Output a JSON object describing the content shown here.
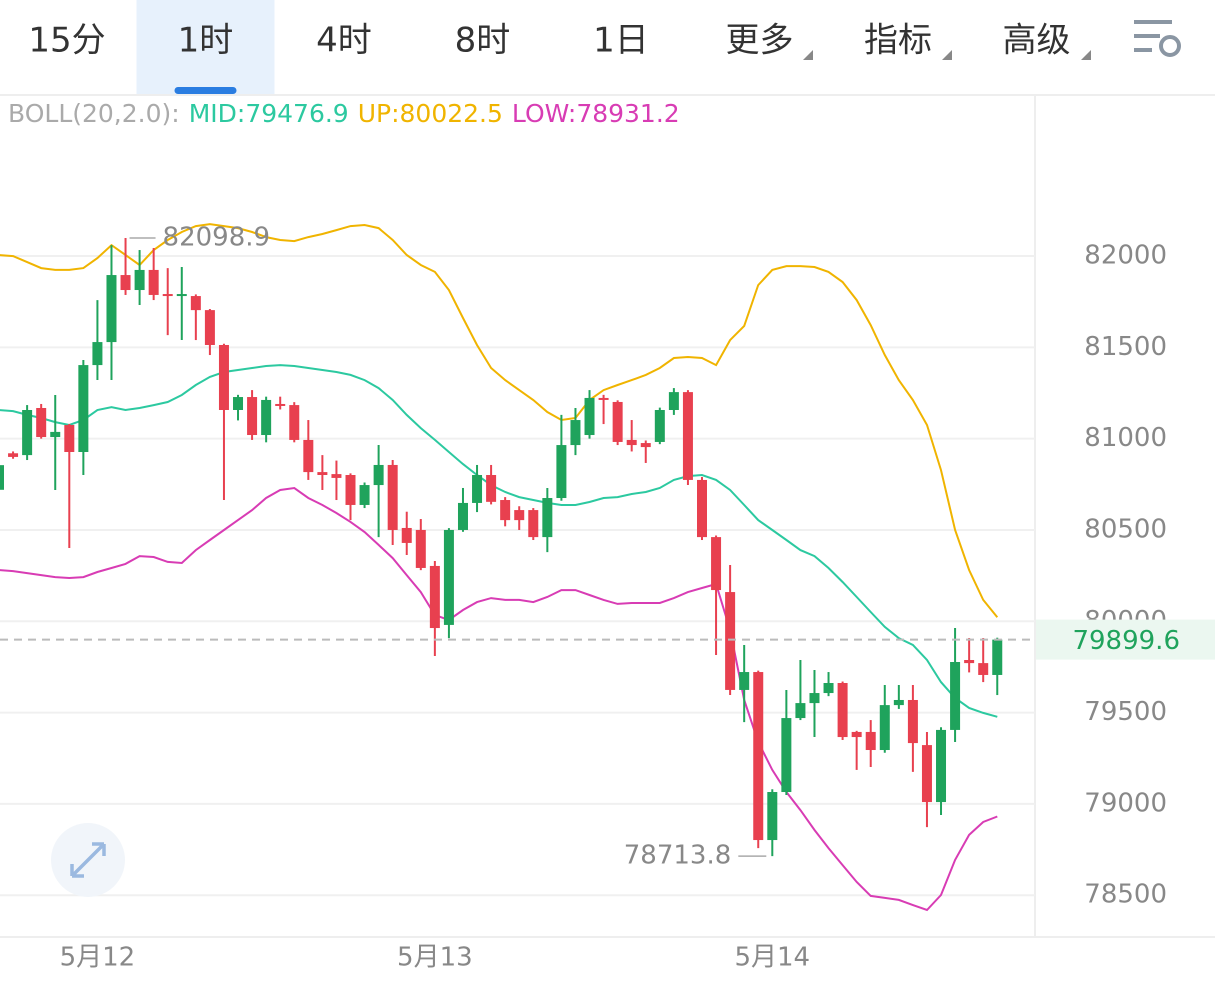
{
  "tabs": [
    "15分",
    "1时",
    "4时",
    "8时",
    "1日",
    "更多",
    "指标",
    "高级"
  ],
  "selected_tab": 1,
  "chart_data": {
    "type": "candlestick",
    "indicator": "BOLL(20,2.0):",
    "categories": [
      null,
      null,
      null,
      null,
      null,
      null,
      null,
      "5月12",
      null,
      null,
      null,
      null,
      null,
      null,
      null,
      null,
      null,
      null,
      null,
      null,
      null,
      null,
      null,
      null,
      null,
      null,
      null,
      null,
      null,
      null,
      null,
      "5月13",
      null,
      null,
      null,
      null,
      null,
      null,
      null,
      null,
      null,
      null,
      null,
      null,
      null,
      null,
      null,
      null,
      null,
      null,
      null,
      null,
      null,
      null,
      null,
      "5月14",
      null,
      null,
      null,
      null,
      null,
      null,
      null,
      null,
      null,
      null,
      null,
      null,
      null,
      null,
      null,
      null
    ],
    "open": [
      80720,
      80920,
      80910,
      81168,
      81009,
      81075,
      80927,
      81403,
      81529,
      81896,
      81814,
      81924,
      81792,
      81787,
      81781,
      81704,
      81513,
      81157,
      81228,
      81020,
      81190,
      81184,
      80993,
      80817,
      80806,
      80801,
      80637,
      80746,
      80856,
      80511,
      80500,
      80303,
      79980,
      80500,
      80648,
      80801,
      80664,
      80609,
      80609,
      80461,
      80675,
      80965,
      81020,
      81223,
      81201,
      80993,
      80976,
      80982,
      81157,
      81255,
      80774,
      80461,
      80160,
      79624,
      79722,
      78802,
      79065,
      79470,
      79552,
      79607,
      79662,
      79394,
      79394,
      79295,
      79541,
      79569,
      79322,
      79010,
      79405,
      79788,
      79771,
      79706
    ],
    "high": [
      80880,
      80930,
      81184,
      81190,
      81239,
      81080,
      81431,
      81759,
      82060,
      82098.9,
      82033,
      82044,
      81934,
      81940,
      81790,
      81710,
      81520,
      81240,
      81266,
      81230,
      81230,
      81200,
      81102,
      80910,
      80880,
      80810,
      80760,
      80965,
      80883,
      80600,
      80560,
      80330,
      80510,
      80730,
      80856,
      80856,
      80680,
      80630,
      80620,
      80730,
      81130,
      81168,
      81266,
      81240,
      81210,
      81102,
      80990,
      81170,
      81277,
      81266,
      80790,
      80470,
      80308,
      79870,
      79730,
      79080,
      79624,
      79788,
      79733,
      79722,
      79670,
      79400,
      79459,
      79651,
      79651,
      79651,
      79394,
      79420,
      79963,
      79908,
      79908,
      79910
    ],
    "low": [
      80710,
      80890,
      80883,
      81000,
      80719,
      80401,
      80801,
      81321,
      81321,
      81787,
      81732,
      81759,
      81567,
      81540,
      81540,
      81458,
      80664,
      81100,
      80993,
      80980,
      81160,
      80980,
      80774,
      80719,
      80664,
      80554,
      80620,
      80461,
      80418,
      80363,
      80280,
      79810,
      79908,
      80490,
      80598,
      80640,
      80520,
      80500,
      80445,
      80379,
      80660,
      80910,
      81000,
      81080,
      80965,
      80930,
      80867,
      80970,
      81130,
      80746,
      80445,
      79815,
      79596,
      79448,
      78758,
      78713.8,
      79049,
      79459,
      79366,
      79590,
      79350,
      79186,
      79202,
      79280,
      79520,
      79175,
      78873,
      78939,
      79339,
      79720,
      79667,
      79596
    ],
    "close": [
      80855,
      80900,
      81157,
      81009,
      81037,
      80927,
      81403,
      81529,
      81896,
      81814,
      81924,
      81787,
      81787,
      81792,
      81704,
      81513,
      81157,
      81228,
      81020,
      81212,
      81184,
      80993,
      80817,
      80801,
      80785,
      80637,
      80746,
      80856,
      80500,
      80429,
      80292,
      79963,
      80500,
      80648,
      80801,
      80654,
      80554,
      80554,
      80461,
      80675,
      80965,
      81102,
      81223,
      81212,
      80982,
      80965,
      80954,
      81157,
      81255,
      80774,
      80461,
      80171,
      79624,
      79722,
      78802,
      79065,
      79470,
      79552,
      79607,
      79662,
      79366,
      79366,
      79295,
      79541,
      79569,
      79333,
      79010,
      79405,
      79777,
      79771,
      79706,
      79899.6
    ],
    "up_color": "#1fa35c",
    "down_color": "#e8404f",
    "series": [
      {
        "name": "MID:",
        "color": "#2cc9a0",
        "values": [
          81157,
          81151,
          81130,
          81113,
          81091,
          81075,
          81102,
          81157,
          81173,
          81157,
          81168,
          81184,
          81201,
          81239,
          81294,
          81338,
          81365,
          81376,
          81387,
          81398,
          81403,
          81398,
          81387,
          81376,
          81365,
          81349,
          81321,
          81277,
          81212,
          81130,
          81058,
          80993,
          80927,
          80861,
          80801,
          80746,
          80708,
          80680,
          80664,
          80648,
          80637,
          80637,
          80653,
          80675,
          80680,
          80697,
          80708,
          80730,
          80774,
          80795,
          80801,
          80774,
          80719,
          80637,
          80554,
          80500,
          80445,
          80390,
          80357,
          80292,
          80215,
          80133,
          80051,
          79969,
          79908,
          79870,
          79788,
          79667,
          79580,
          79525,
          79498,
          79476.9
        ]
      },
      {
        "name": "UP:",
        "color": "#f0b400",
        "values": [
          82006,
          82000,
          81967,
          81934,
          81924,
          81924,
          81934,
          81989,
          82060,
          82006,
          81951,
          82033,
          82088,
          82132,
          82164,
          82175,
          82164,
          82153,
          82132,
          82104,
          82088,
          82082,
          82104,
          82121,
          82142,
          82164,
          82170,
          82153,
          82088,
          82006,
          81951,
          81913,
          81814,
          81661,
          81513,
          81387,
          81321,
          81266,
          81212,
          81146,
          81102,
          81113,
          81212,
          81266,
          81294,
          81321,
          81349,
          81387,
          81442,
          81447,
          81442,
          81403,
          81540,
          81617,
          81841,
          81924,
          81945,
          81945,
          81940,
          81913,
          81858,
          81759,
          81622,
          81458,
          81321,
          81212,
          81075,
          80828,
          80500,
          80281,
          80117,
          80022.5
        ]
      },
      {
        "name": "LOW:",
        "color": "#d83cb4",
        "values": [
          80281,
          80275,
          80264,
          80253,
          80242,
          80237,
          80242,
          80270,
          80292,
          80314,
          80357,
          80352,
          80325,
          80319,
          80390,
          80445,
          80500,
          80554,
          80609,
          80675,
          80719,
          80730,
          80675,
          80637,
          80593,
          80544,
          80489,
          80418,
          80346,
          80253,
          80160,
          80034,
          80007,
          80062,
          80105,
          80127,
          80117,
          80117,
          80105,
          80133,
          80171,
          80171,
          80144,
          80117,
          80095,
          80100,
          80100,
          80100,
          80127,
          80160,
          80182,
          80204,
          79952,
          79569,
          79339,
          79186,
          79065,
          78966,
          78857,
          78758,
          78665,
          78572,
          78496,
          78485,
          78474,
          78446,
          78419,
          78501,
          78693,
          78830,
          78901,
          78931.2
        ]
      }
    ],
    "ylim": [
      78282,
      82882
    ],
    "yticks": [
      78500,
      79000,
      79500,
      80000,
      80500,
      81000,
      81500,
      82000
    ],
    "grid": true
  }
}
